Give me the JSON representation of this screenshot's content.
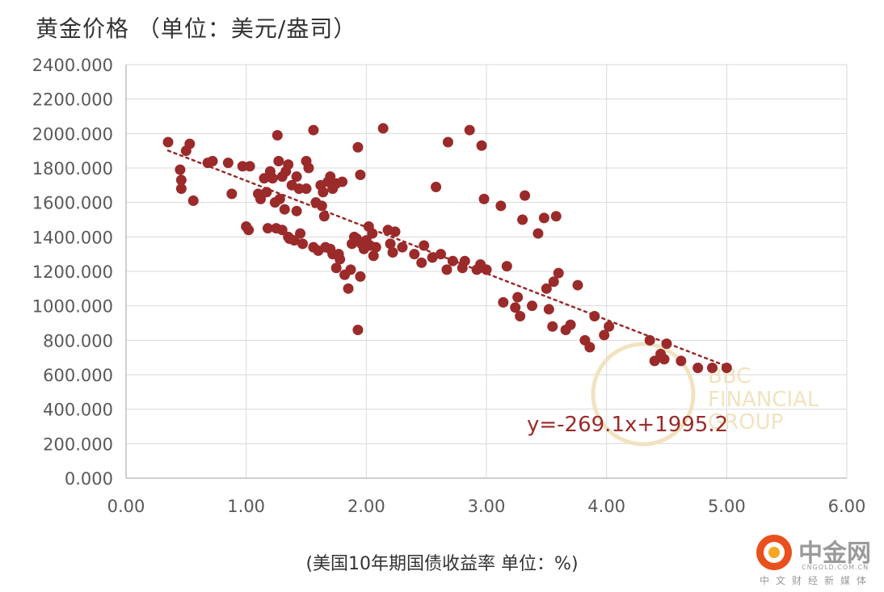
{
  "chart_data": {
    "type": "scatter",
    "title": "黄金价格 （单位：美元/盎司）",
    "xlabel": "(美国10年期国债收益率 单位：%)",
    "ylabel": "",
    "xlim": [
      0,
      6
    ],
    "ylim": [
      0,
      2400
    ],
    "xticks": [
      "0.00",
      "1.00",
      "2.00",
      "3.00",
      "4.00",
      "5.00",
      "6.00"
    ],
    "yticks": [
      "0.000",
      "200.000",
      "400.000",
      "600.000",
      "800.000",
      "1000.000",
      "1200.000",
      "1400.000",
      "1600.000",
      "1800.000",
      "2000.000",
      "2200.000",
      "2400.000"
    ],
    "grid": true,
    "point_color": "#9b2a2a",
    "trendline": {
      "equation": "y=-269.1x+1995.2",
      "slope": -269.1,
      "intercept": 1995.2,
      "x_range": [
        0.35,
        5.0
      ],
      "color": "#9b2a2a"
    },
    "points": [
      [
        0.35,
        1950
      ],
      [
        0.45,
        1790
      ],
      [
        0.46,
        1730
      ],
      [
        0.46,
        1680
      ],
      [
        0.5,
        1900
      ],
      [
        0.53,
        1940
      ],
      [
        0.56,
        1610
      ],
      [
        0.68,
        1830
      ],
      [
        0.72,
        1840
      ],
      [
        0.85,
        1830
      ],
      [
        0.88,
        1650
      ],
      [
        0.97,
        1810
      ],
      [
        1.03,
        1810
      ],
      [
        1.0,
        1460
      ],
      [
        1.02,
        1440
      ],
      [
        1.1,
        1650
      ],
      [
        1.12,
        1620
      ],
      [
        1.15,
        1740
      ],
      [
        1.17,
        1660
      ],
      [
        1.18,
        1450
      ],
      [
        1.2,
        1780
      ],
      [
        1.22,
        1740
      ],
      [
        1.24,
        1600
      ],
      [
        1.25,
        1450
      ],
      [
        1.26,
        1990
      ],
      [
        1.27,
        1840
      ],
      [
        1.28,
        1620
      ],
      [
        1.3,
        1750
      ],
      [
        1.3,
        1440
      ],
      [
        1.32,
        1560
      ],
      [
        1.33,
        1780
      ],
      [
        1.35,
        1820
      ],
      [
        1.35,
        1400
      ],
      [
        1.36,
        1390
      ],
      [
        1.38,
        1700
      ],
      [
        1.4,
        1380
      ],
      [
        1.42,
        1750
      ],
      [
        1.42,
        1550
      ],
      [
        1.44,
        1680
      ],
      [
        1.45,
        1420
      ],
      [
        1.47,
        1360
      ],
      [
        1.5,
        1840
      ],
      [
        1.5,
        1680
      ],
      [
        1.52,
        1800
      ],
      [
        1.56,
        2020
      ],
      [
        1.56,
        1340
      ],
      [
        1.58,
        1600
      ],
      [
        1.6,
        1320
      ],
      [
        1.62,
        1700
      ],
      [
        1.63,
        1580
      ],
      [
        1.64,
        1660
      ],
      [
        1.65,
        1520
      ],
      [
        1.66,
        1340
      ],
      [
        1.68,
        1720
      ],
      [
        1.7,
        1750
      ],
      [
        1.7,
        1330
      ],
      [
        1.72,
        1680
      ],
      [
        1.72,
        1300
      ],
      [
        1.75,
        1710
      ],
      [
        1.75,
        1220
      ],
      [
        1.77,
        1300
      ],
      [
        1.78,
        1270
      ],
      [
        1.8,
        1720
      ],
      [
        1.82,
        1180
      ],
      [
        1.85,
        1100
      ],
      [
        1.87,
        1210
      ],
      [
        1.88,
        1360
      ],
      [
        1.9,
        1400
      ],
      [
        1.92,
        1390
      ],
      [
        1.93,
        1920
      ],
      [
        1.93,
        860
      ],
      [
        1.95,
        1170
      ],
      [
        1.95,
        1760
      ],
      [
        1.96,
        1360
      ],
      [
        1.98,
        1330
      ],
      [
        2.0,
        1380
      ],
      [
        2.02,
        1460
      ],
      [
        2.03,
        1350
      ],
      [
        2.05,
        1420
      ],
      [
        2.06,
        1290
      ],
      [
        2.08,
        1340
      ],
      [
        2.14,
        2030
      ],
      [
        2.18,
        1440
      ],
      [
        2.2,
        1360
      ],
      [
        2.22,
        1310
      ],
      [
        2.24,
        1430
      ],
      [
        2.3,
        1340
      ],
      [
        2.4,
        1300
      ],
      [
        2.46,
        1250
      ],
      [
        2.48,
        1350
      ],
      [
        2.55,
        1280
      ],
      [
        2.58,
        1690
      ],
      [
        2.62,
        1300
      ],
      [
        2.67,
        1210
      ],
      [
        2.68,
        1950
      ],
      [
        2.72,
        1260
      ],
      [
        2.8,
        1220
      ],
      [
        2.82,
        1260
      ],
      [
        2.86,
        2020
      ],
      [
        2.92,
        1210
      ],
      [
        2.95,
        1240
      ],
      [
        2.96,
        1930
      ],
      [
        2.98,
        1620
      ],
      [
        3.0,
        1210
      ],
      [
        3.12,
        1580
      ],
      [
        3.14,
        1020
      ],
      [
        3.17,
        1230
      ],
      [
        3.24,
        990
      ],
      [
        3.26,
        1050
      ],
      [
        3.28,
        940
      ],
      [
        3.3,
        1500
      ],
      [
        3.32,
        1640
      ],
      [
        3.38,
        1000
      ],
      [
        3.43,
        1420
      ],
      [
        3.48,
        1510
      ],
      [
        3.5,
        1100
      ],
      [
        3.52,
        980
      ],
      [
        3.55,
        880
      ],
      [
        3.56,
        1140
      ],
      [
        3.58,
        1520
      ],
      [
        3.6,
        1190
      ],
      [
        3.66,
        860
      ],
      [
        3.7,
        890
      ],
      [
        3.76,
        1120
      ],
      [
        3.82,
        800
      ],
      [
        3.86,
        760
      ],
      [
        3.9,
        940
      ],
      [
        3.98,
        830
      ],
      [
        4.02,
        880
      ],
      [
        4.36,
        800
      ],
      [
        4.4,
        680
      ],
      [
        4.45,
        720
      ],
      [
        4.48,
        690
      ],
      [
        4.5,
        780
      ],
      [
        4.62,
        680
      ],
      [
        4.76,
        640
      ],
      [
        4.88,
        640
      ],
      [
        5.0,
        640
      ]
    ]
  },
  "watermark": {
    "lines": [
      "BBC",
      "FINANCIAL",
      "GROUP"
    ]
  },
  "logo": {
    "name": "中金网",
    "domain": "CNGOLD.COM.CN",
    "tagline": "中文财经新媒体"
  }
}
